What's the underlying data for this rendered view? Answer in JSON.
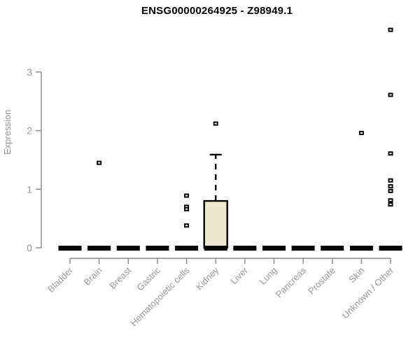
{
  "chart_data": {
    "type": "boxplot",
    "title": "ENSG00000264925 - Z98949.1",
    "ylabel": "Expression",
    "xlabel": "",
    "yticks": [
      0,
      1,
      2,
      3
    ],
    "ylim": [
      0,
      3.8
    ],
    "grid": false,
    "legend": "none",
    "categories": [
      "Bladder",
      "Brain",
      "Breast",
      "Gastric",
      "Hematopoietic cells",
      "Kidney",
      "Liver",
      "Lung",
      "Pancreas",
      "Prostate",
      "Skin",
      "Unknown / Other"
    ],
    "series": [
      {
        "category": "Bladder",
        "q1": 0,
        "median": 0,
        "q3": 0,
        "whisker_low": 0,
        "whisker_high": 0,
        "outliers": []
      },
      {
        "category": "Brain",
        "q1": 0,
        "median": 0,
        "q3": 0,
        "whisker_low": 0,
        "whisker_high": 0,
        "outliers": [
          1.45
        ]
      },
      {
        "category": "Breast",
        "q1": 0,
        "median": 0,
        "q3": 0,
        "whisker_low": 0,
        "whisker_high": 0,
        "outliers": []
      },
      {
        "category": "Gastric",
        "q1": 0,
        "median": 0,
        "q3": 0,
        "whisker_low": 0,
        "whisker_high": 0,
        "outliers": []
      },
      {
        "category": "Hematopoietic cells",
        "q1": 0,
        "median": 0,
        "q3": 0,
        "whisker_low": 0,
        "whisker_high": 0,
        "outliers": [
          0.89,
          0.7,
          0.66,
          0.38
        ]
      },
      {
        "category": "Kidney",
        "q1": 0,
        "median": 0,
        "q3": 0.8,
        "whisker_low": 0,
        "whisker_high": 1.59,
        "outliers": [
          2.12
        ]
      },
      {
        "category": "Liver",
        "q1": 0,
        "median": 0,
        "q3": 0,
        "whisker_low": 0,
        "whisker_high": 0,
        "outliers": []
      },
      {
        "category": "Lung",
        "q1": 0,
        "median": 0,
        "q3": 0,
        "whisker_low": 0,
        "whisker_high": 0,
        "outliers": []
      },
      {
        "category": "Pancreas",
        "q1": 0,
        "median": 0,
        "q3": 0,
        "whisker_low": 0,
        "whisker_high": 0,
        "outliers": []
      },
      {
        "category": "Prostate",
        "q1": 0,
        "median": 0,
        "q3": 0,
        "whisker_low": 0,
        "whisker_high": 0,
        "outliers": []
      },
      {
        "category": "Skin",
        "q1": 0,
        "median": 0,
        "q3": 0,
        "whisker_low": 0,
        "whisker_high": 0,
        "outliers": [
          1.96
        ]
      },
      {
        "category": "Unknown / Other",
        "q1": 0,
        "median": 0,
        "q3": 0,
        "whisker_low": 0,
        "whisker_high": 0,
        "outliers": [
          3.72,
          2.61,
          1.61,
          1.15,
          1.05,
          0.97,
          0.81,
          0.74
        ]
      }
    ],
    "colors": {
      "box_fill": "#ece8cd",
      "box_stroke": "#000000",
      "median": "#000000",
      "outlier": "#000000",
      "axis_line": "#888888",
      "axis_text": "#999999",
      "title": "#000000",
      "background": "#ffffff"
    }
  }
}
